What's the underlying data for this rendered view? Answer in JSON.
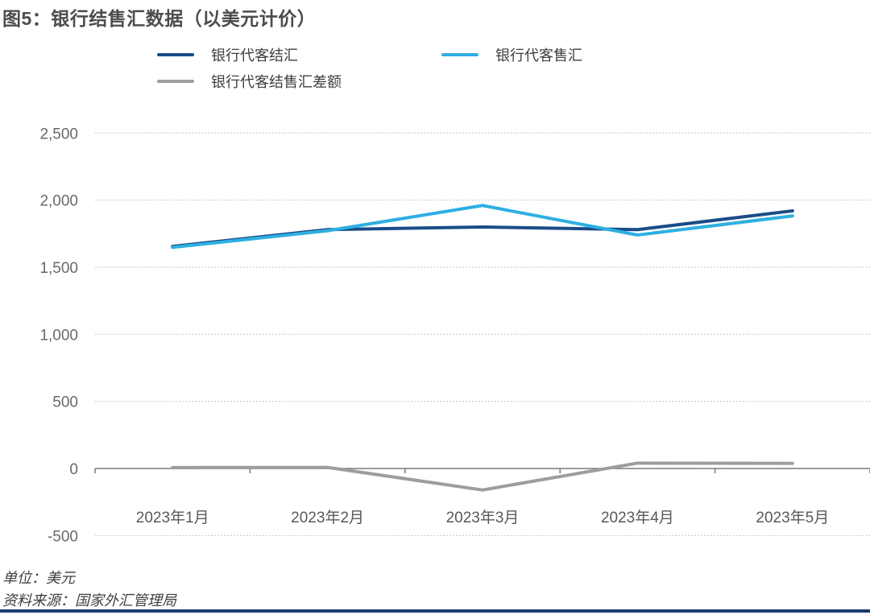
{
  "title": "图5：银行结售汇数据（以美元计价）",
  "footer": {
    "unit_note": "单位：美元",
    "source_note": "资料来源：国家外汇管理局"
  },
  "colors": {
    "settlement_line": "#1a4d87",
    "sales_line": "#2eafe2",
    "balance_line": "#9d9d9d",
    "axis": "#7a7a7a",
    "gridline": "#c6c6c6",
    "tick_label": "#68696c",
    "bottom_rule": "#1d3c6f"
  },
  "chart_data": {
    "type": "line",
    "title": "图5：银行结售汇数据（以美元计价）",
    "categories": [
      "2023年1月",
      "2023年2月",
      "2023年3月",
      "2023年4月",
      "2023年5月"
    ],
    "series": [
      {
        "name": "银行代客结汇",
        "color": "#1a4d87",
        "values": [
          1655,
          1780,
          1800,
          1780,
          1920
        ]
      },
      {
        "name": "银行代客售汇",
        "color": "#2eafe2",
        "values": [
          1648,
          1772,
          1960,
          1740,
          1882
        ]
      },
      {
        "name": "银行代客结售汇差额",
        "color": "#9d9d9d",
        "values": [
          7,
          8,
          -160,
          40,
          38
        ]
      }
    ],
    "ylim": [
      -500,
      2500
    ],
    "ytick_step": 500,
    "yticks": [
      {
        "v": 2500,
        "label": "2,500"
      },
      {
        "v": 2000,
        "label": "2,000"
      },
      {
        "v": 1500,
        "label": "1,500"
      },
      {
        "v": 1000,
        "label": "1,000"
      },
      {
        "v": 500,
        "label": "500"
      },
      {
        "v": 0,
        "label": "0"
      },
      {
        "v": -500,
        "label": "-500"
      }
    ],
    "grid": "horizontal-dashed",
    "legend_position": "top",
    "unit": "美元",
    "source": "国家外汇管理局"
  }
}
